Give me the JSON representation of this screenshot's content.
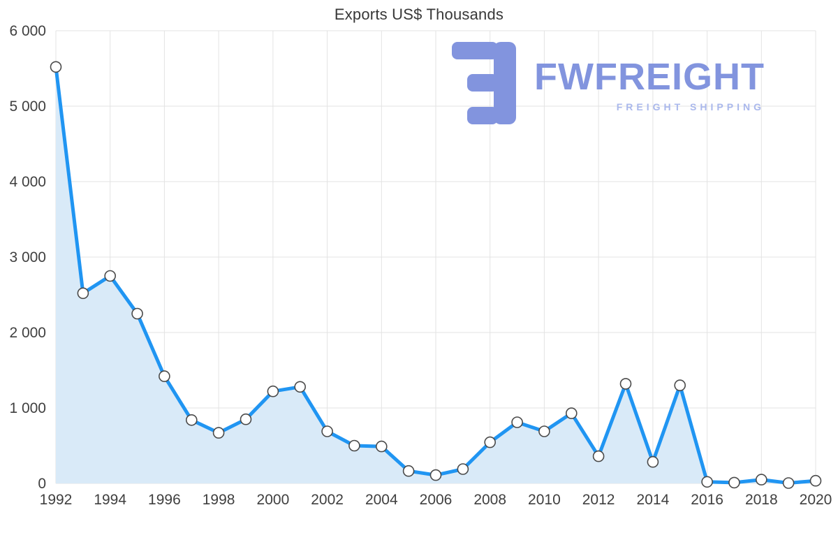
{
  "chart_data": {
    "type": "area",
    "title": "Exports US$ Thousands",
    "xlabel": "",
    "ylabel": "",
    "x": [
      1992,
      1993,
      1994,
      1995,
      1996,
      1997,
      1998,
      1999,
      2000,
      2001,
      2002,
      2003,
      2004,
      2005,
      2006,
      2007,
      2008,
      2009,
      2010,
      2011,
      2012,
      2013,
      2014,
      2015,
      2016,
      2017,
      2018,
      2019,
      2020
    ],
    "values": [
      5520,
      2520,
      2750,
      2250,
      1420,
      840,
      670,
      850,
      1220,
      1280,
      690,
      500,
      490,
      165,
      110,
      190,
      545,
      810,
      690,
      930,
      360,
      1320,
      285,
      1300,
      20,
      10,
      50,
      5,
      35
    ],
    "xlim": [
      1992,
      2020
    ],
    "ylim": [
      0,
      6000
    ],
    "xticks": {
      "values": [
        1992,
        1994,
        1996,
        1998,
        2000,
        2002,
        2004,
        2006,
        2008,
        2010,
        2012,
        2014,
        2016,
        2018,
        2020
      ],
      "labels": [
        "1992",
        "1994",
        "1996",
        "1998",
        "2000",
        "2002",
        "2004",
        "2006",
        "2008",
        "2010",
        "2012",
        "2014",
        "2016",
        "2018",
        "2020"
      ]
    },
    "yticks": {
      "values": [
        0,
        1000,
        2000,
        3000,
        4000,
        5000,
        6000
      ],
      "labels": [
        "0",
        "1 000",
        "2 000",
        "3 000",
        "4 000",
        "5 000",
        "6 000"
      ]
    },
    "grid": true,
    "legend_position": "none",
    "colors": {
      "line": "#2095f2",
      "area": "#d9eaf8",
      "marker_fill": "#ffffff",
      "marker_stroke": "#4a4a4a",
      "grid": "#e3e3e3",
      "tick": "#3f3f3f",
      "title": "#383838"
    }
  },
  "watermark": {
    "brand": "FWFREIGHT",
    "tagline": "FREIGHT SHIPPING",
    "brand_color": "#8294de",
    "tagline_color": "#aab8ec",
    "icon_color": "#8294de"
  }
}
